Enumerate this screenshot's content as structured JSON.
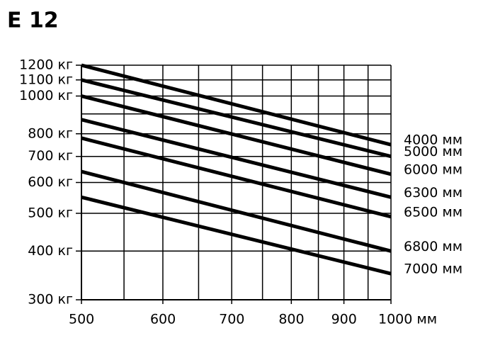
{
  "chart_data": {
    "type": "line",
    "title": "E 12",
    "x": [
      500,
      1000
    ],
    "series": [
      {
        "name": "4000 мм",
        "color": "#000000",
        "values": [
          1200,
          750
        ]
      },
      {
        "name": "5000 мм",
        "color": "#000000",
        "values": [
          1100,
          700
        ]
      },
      {
        "name": "6000 мм",
        "color": "#000000",
        "values": [
          1000,
          630
        ]
      },
      {
        "name": "6300 мм",
        "color": "#000000",
        "values": [
          870,
          550
        ]
      },
      {
        "name": "6500 мм",
        "color": "#000000",
        "values": [
          780,
          490
        ]
      },
      {
        "name": "6800 мм",
        "color": "#000000",
        "values": [
          640,
          400
        ]
      },
      {
        "name": "7000 мм",
        "color": "#000000",
        "values": [
          550,
          350
        ]
      }
    ],
    "xlim": [
      500,
      1000
    ],
    "ylim": [
      300,
      1200
    ],
    "log_x": true,
    "log_y": true,
    "grid": true,
    "xticks": [
      500,
      600,
      700,
      800,
      900,
      {
        "value": 1000,
        "label": "1000 мм"
      }
    ],
    "x_minor_grid": [
      550,
      650,
      750,
      850,
      950
    ],
    "yticks": [
      {
        "value": 300,
        "label": "300 кг"
      },
      {
        "value": 400,
        "label": "400 кг"
      },
      {
        "value": 500,
        "label": "500 кг"
      },
      {
        "value": 600,
        "label": "600 кг"
      },
      {
        "value": 700,
        "label": "700 кг"
      },
      {
        "value": 800,
        "label": "800 кг"
      },
      {
        "value": 1000,
        "label": "1000 кг"
      },
      {
        "value": 1100,
        "label": "1100 кг"
      },
      {
        "value": 1200,
        "label": "1200 кг"
      }
    ],
    "y_minor_grid": [
      900
    ]
  }
}
